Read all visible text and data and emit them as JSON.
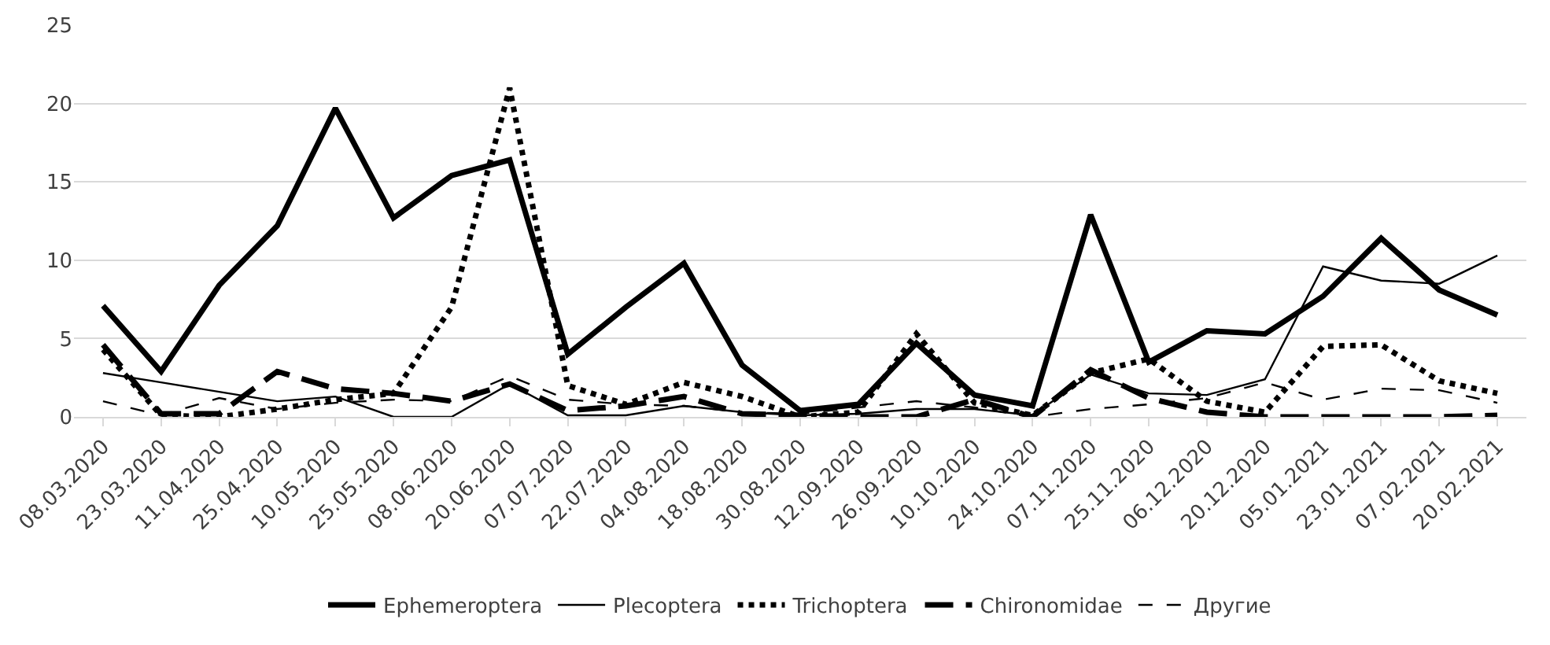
{
  "chart_data": {
    "type": "line",
    "categories": [
      "08.03.2020",
      "23.03.2020",
      "11.04.2020",
      "25.04.2020",
      "10.05.2020",
      "25.05.2020",
      "08.06.2020",
      "20.06.2020",
      "07.07.2020",
      "22.07.2020",
      "04.08.2020",
      "18.08.2020",
      "30.08.2020",
      "12.09.2020",
      "26.09.2020",
      "10.10.2020",
      "24.10.2020",
      "07.11.2020",
      "25.11.2020",
      "06.12.2020",
      "20.12.2020",
      "05.01.2021",
      "23.01.2021",
      "07.02.2021",
      "20.02.2021"
    ],
    "series": [
      {
        "name": "Ephemeroptera",
        "color": "#000000",
        "line_style": "solid",
        "values": [
          7.1,
          2.9,
          8.4,
          12.2,
          19.7,
          12.7,
          15.4,
          16.4,
          4.0,
          7.0,
          9.8,
          3.3,
          0.4,
          0.8,
          4.7,
          1.4,
          0.7,
          12.9,
          3.5,
          5.5,
          5.3,
          7.7,
          11.4,
          8.1,
          6.5
        ]
      },
      {
        "name": "Plecoptera",
        "color": "#000000",
        "line_style": "solid",
        "values": [
          2.8,
          2.2,
          1.6,
          1.0,
          1.3,
          0.0,
          0.0,
          2.1,
          0.1,
          0.1,
          0.7,
          0.3,
          0.1,
          0.2,
          0.5,
          0.5,
          0.1,
          2.7,
          1.5,
          1.4,
          2.4,
          9.6,
          8.7,
          8.5,
          10.3
        ]
      },
      {
        "name": "Trichoptera",
        "color": "#000000",
        "line_style": "dotted",
        "values": [
          4.3,
          0.1,
          0.0,
          0.5,
          1.1,
          1.5,
          7.0,
          21.0,
          2.0,
          0.8,
          2.2,
          1.3,
          0.0,
          0.3,
          5.3,
          0.9,
          0.1,
          2.8,
          3.7,
          1.0,
          0.3,
          4.5,
          4.6,
          2.3,
          1.5
        ]
      },
      {
        "name": "Chironomidae",
        "color": "#000000",
        "line_style": "dashed",
        "values": [
          4.6,
          0.2,
          0.2,
          2.9,
          1.8,
          1.5,
          1.0,
          2.1,
          0.4,
          0.7,
          1.3,
          0.2,
          0.1,
          0.0,
          0.0,
          1.1,
          0.0,
          3.0,
          1.2,
          0.3,
          0.0,
          0.0,
          0.0,
          0.0,
          0.1
        ]
      },
      {
        "name": "Другие",
        "color": "#000000",
        "line_style": "dashed",
        "values": [
          1.0,
          0.1,
          1.2,
          0.5,
          0.9,
          1.1,
          1.0,
          2.6,
          1.1,
          0.8,
          0.7,
          0.3,
          0.2,
          0.6,
          1.0,
          0.6,
          0.0,
          0.5,
          0.8,
          1.2,
          2.2,
          1.1,
          1.8,
          1.7,
          0.9
        ]
      }
    ],
    "ylim": [
      0,
      25
    ],
    "yticks": [
      0,
      5,
      10,
      15,
      20,
      25
    ],
    "grid": "y",
    "legend": "bottom",
    "marker": "none"
  }
}
